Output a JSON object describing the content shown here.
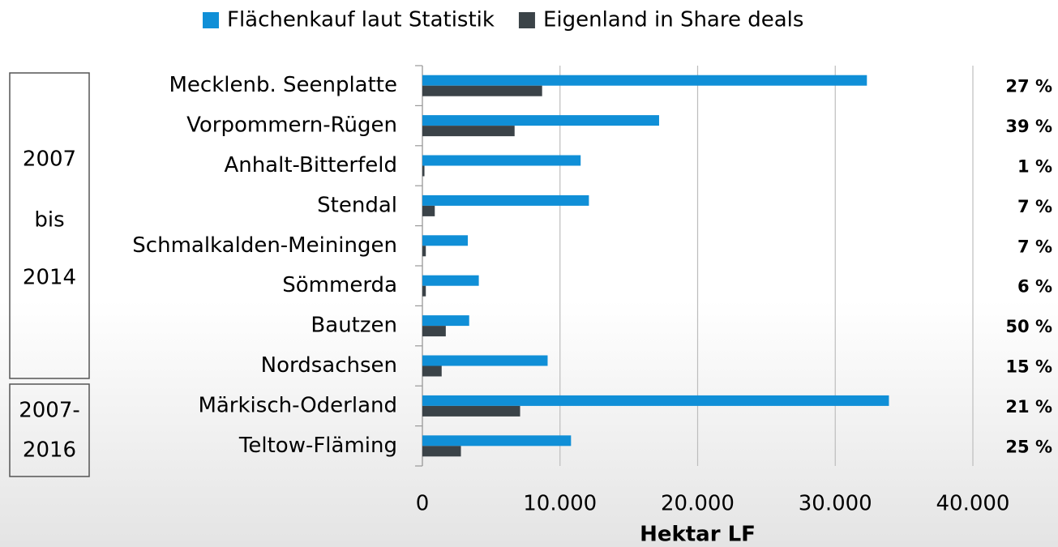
{
  "chart_data": {
    "type": "hbar",
    "categories": [
      "Mecklenb. Seenplatte",
      "Vorpommern-Rügen",
      "Anhalt-Bitterfeld",
      "Stendal",
      "Schmalkalden-Meiningen",
      "Sömmerda",
      "Bautzen",
      "Nordsachsen",
      "Märkisch-Oderland",
      "Teltow-Fläming"
    ],
    "series": [
      {
        "name": "Flächenkauf laut Statistik",
        "color": "#108fd7",
        "values": [
          32300,
          17200,
          11500,
          12100,
          3300,
          4100,
          3400,
          9100,
          33900,
          10800
        ]
      },
      {
        "name": "Eigenland in Share deals",
        "color": "#3b4348",
        "values": [
          8700,
          6700,
          150,
          900,
          250,
          250,
          1700,
          1400,
          7100,
          2800
        ]
      }
    ],
    "annotations": [
      "27 %",
      "39 %",
      "1 %",
      "7 %",
      "7 %",
      "6 %",
      "50 %",
      "15 %",
      "21 %",
      "25 %"
    ],
    "annotation_color": "#e8141c",
    "groups": [
      {
        "lines": [
          "2007",
          "bis",
          "2014"
        ]
      },
      {
        "lines": [
          "2007-",
          "2016"
        ]
      }
    ],
    "xlabel": "Hektar LF",
    "xlim": [
      0,
      40000
    ],
    "xticks": [
      0,
      {
        "value": 10000,
        "label": "10.000"
      },
      {
        "value": 20000,
        "label": "20.000"
      },
      {
        "value": 30000,
        "label": "30.000"
      },
      {
        "value": 40000,
        "label": "40.000"
      }
    ],
    "grid": true,
    "legend": "top"
  }
}
